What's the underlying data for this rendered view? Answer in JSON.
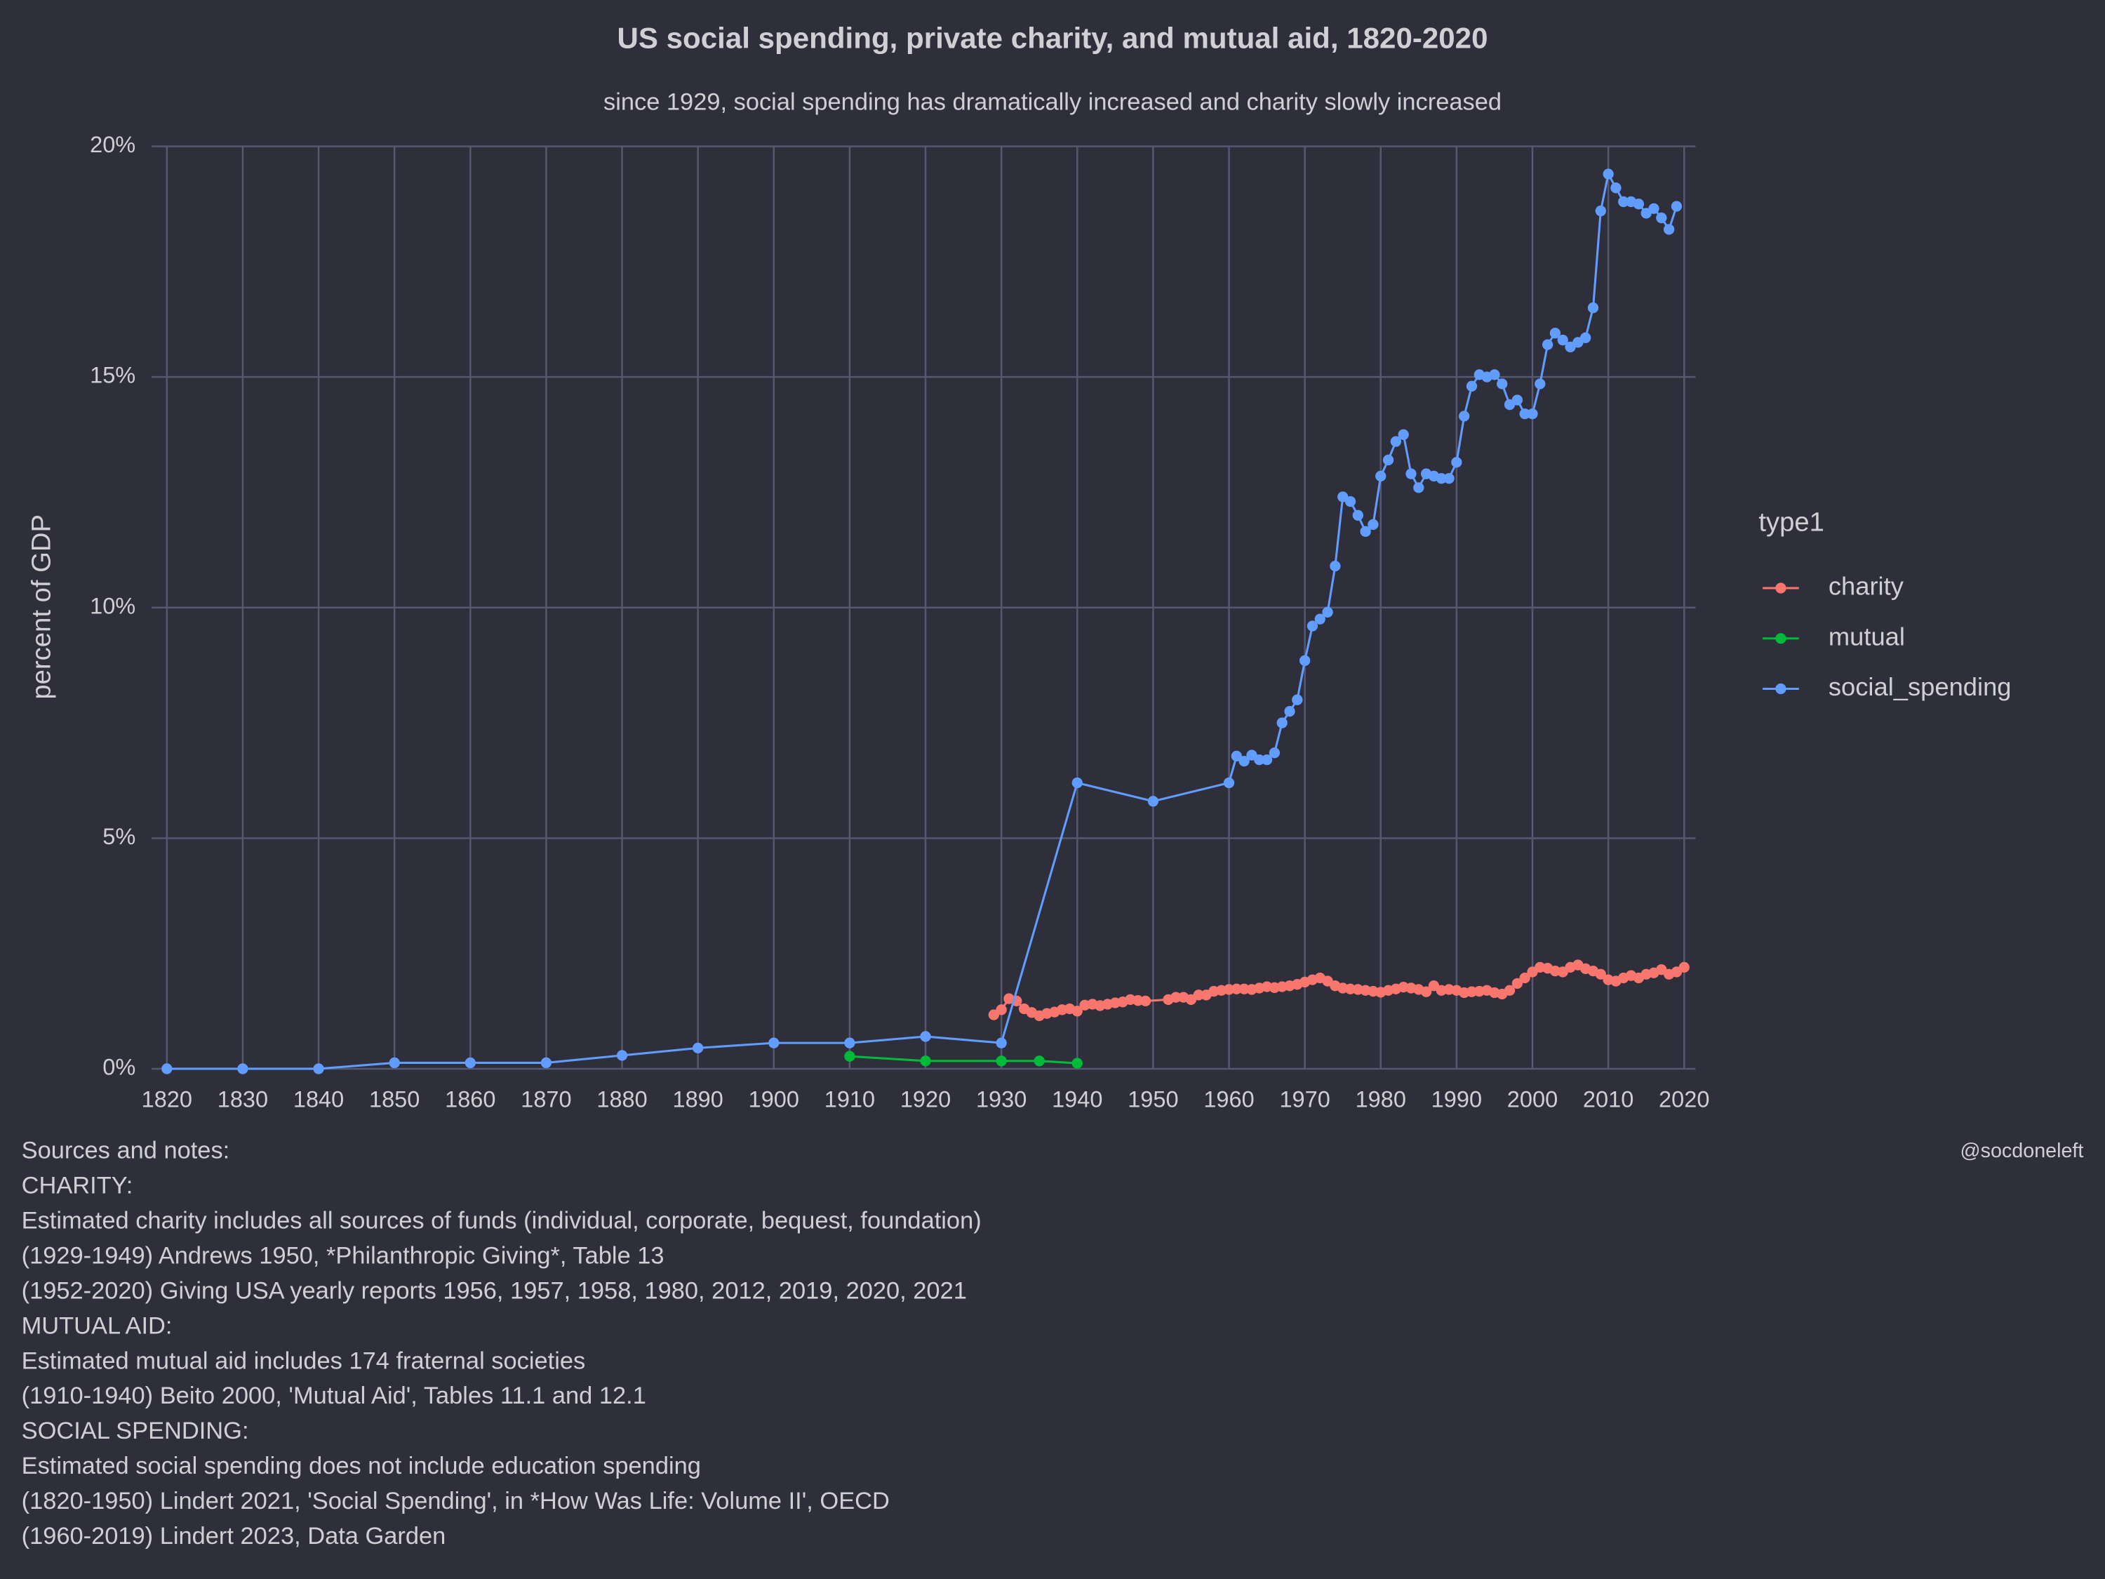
{
  "chart_data": {
    "type": "line",
    "title": "US social spending, private charity, and mutual aid, 1820-2020",
    "subtitle": "since 1929, social spending has dramatically increased and charity slowly increased",
    "y_label": "percent of GDP",
    "legend_title": "type1",
    "grid": true,
    "xlim": [
      1818,
      2021.5
    ],
    "ylim": [
      0,
      20
    ],
    "xticks": [
      1820,
      1830,
      1840,
      1850,
      1860,
      1870,
      1880,
      1890,
      1900,
      1910,
      1920,
      1930,
      1940,
      1950,
      1960,
      1970,
      1980,
      1990,
      2000,
      2010,
      2020
    ],
    "yticks": [
      {
        "value": 0,
        "label": "0%"
      },
      {
        "value": 5,
        "label": "5%"
      },
      {
        "value": 10,
        "label": "10%"
      },
      {
        "value": 15,
        "label": "15%"
      },
      {
        "value": 20,
        "label": "20%"
      }
    ],
    "series": [
      {
        "name": "charity",
        "color": "#f8766d",
        "x": [
          1929,
          1930,
          1931,
          1932,
          1933,
          1934,
          1935,
          1936,
          1937,
          1938,
          1939,
          1940,
          1941,
          1942,
          1943,
          1944,
          1945,
          1946,
          1947,
          1948,
          1949,
          1952,
          1953,
          1954,
          1955,
          1956,
          1957,
          1958,
          1959,
          1960,
          1961,
          1962,
          1963,
          1964,
          1965,
          1966,
          1967,
          1968,
          1969,
          1970,
          1971,
          1972,
          1973,
          1974,
          1975,
          1976,
          1977,
          1978,
          1979,
          1980,
          1981,
          1982,
          1983,
          1984,
          1985,
          1986,
          1987,
          1988,
          1989,
          1990,
          1991,
          1992,
          1993,
          1994,
          1995,
          1996,
          1997,
          1998,
          1999,
          2000,
          2001,
          2002,
          2003,
          2004,
          2005,
          2006,
          2007,
          2008,
          2009,
          2010,
          2011,
          2012,
          2013,
          2014,
          2015,
          2016,
          2017,
          2018,
          2019,
          2020
        ],
        "values": [
          1.17,
          1.28,
          1.52,
          1.47,
          1.3,
          1.22,
          1.15,
          1.2,
          1.23,
          1.28,
          1.3,
          1.25,
          1.38,
          1.4,
          1.37,
          1.4,
          1.43,
          1.45,
          1.5,
          1.48,
          1.47,
          1.5,
          1.55,
          1.55,
          1.5,
          1.6,
          1.6,
          1.68,
          1.7,
          1.72,
          1.73,
          1.73,
          1.72,
          1.75,
          1.78,
          1.76,
          1.78,
          1.8,
          1.83,
          1.88,
          1.93,
          1.97,
          1.9,
          1.8,
          1.75,
          1.73,
          1.72,
          1.7,
          1.68,
          1.66,
          1.7,
          1.73,
          1.77,
          1.75,
          1.72,
          1.67,
          1.8,
          1.7,
          1.72,
          1.7,
          1.65,
          1.67,
          1.68,
          1.7,
          1.65,
          1.62,
          1.7,
          1.85,
          1.97,
          2.1,
          2.2,
          2.18,
          2.12,
          2.1,
          2.2,
          2.25,
          2.17,
          2.12,
          2.05,
          1.93,
          1.9,
          1.97,
          2.02,
          1.97,
          2.05,
          2.08,
          2.15,
          2.05,
          2.1,
          2.2
        ]
      },
      {
        "name": "mutual",
        "color": "#00ba38",
        "x": [
          1910,
          1920,
          1930,
          1935,
          1940
        ],
        "values": [
          0.27,
          0.17,
          0.17,
          0.17,
          0.12
        ]
      },
      {
        "name": "social_spending",
        "color": "#619cff",
        "x": [
          1820,
          1830,
          1840,
          1850,
          1860,
          1870,
          1880,
          1890,
          1900,
          1910,
          1920,
          1930,
          1940,
          1950,
          1960,
          1961,
          1962,
          1963,
          1964,
          1965,
          1966,
          1967,
          1968,
          1969,
          1970,
          1971,
          1972,
          1973,
          1974,
          1975,
          1976,
          1977,
          1978,
          1979,
          1980,
          1981,
          1982,
          1983,
          1984,
          1985,
          1986,
          1987,
          1988,
          1989,
          1990,
          1991,
          1992,
          1993,
          1994,
          1995,
          1996,
          1997,
          1998,
          1999,
          2000,
          2001,
          2002,
          2003,
          2004,
          2005,
          2006,
          2007,
          2008,
          2009,
          2010,
          2011,
          2012,
          2013,
          2014,
          2015,
          2016,
          2017,
          2018,
          2019
        ],
        "values": [
          0,
          0,
          0,
          0.13,
          0.13,
          0.13,
          0.29,
          0.45,
          0.56,
          0.56,
          0.7,
          0.56,
          6.2,
          5.8,
          6.2,
          6.78,
          6.67,
          6.8,
          6.7,
          6.7,
          6.85,
          7.5,
          7.75,
          8.0,
          8.85,
          9.6,
          9.75,
          9.9,
          10.9,
          12.4,
          12.3,
          12.0,
          11.65,
          11.8,
          12.85,
          13.2,
          13.6,
          13.75,
          12.9,
          12.6,
          12.9,
          12.85,
          12.8,
          12.8,
          13.15,
          14.15,
          14.8,
          15.05,
          15.0,
          15.05,
          14.85,
          14.4,
          14.5,
          14.2,
          14.2,
          14.85,
          15.7,
          15.95,
          15.8,
          15.65,
          15.75,
          15.85,
          16.5,
          18.6,
          19.4,
          19.1,
          18.8,
          18.8,
          18.75,
          18.55,
          18.65,
          18.45,
          18.2,
          18.7
        ]
      }
    ],
    "credit": "@socdoneleft",
    "notes": [
      "Sources and notes:",
      "CHARITY:",
      "Estimated charity includes all sources of funds (individual, corporate, bequest, foundation)",
      "(1929-1949) Andrews 1950, *Philanthropic Giving*, Table 13",
      "(1952-2020) Giving USA yearly reports 1956, 1957, 1958, 1980, 2012, 2019, 2020, 2021",
      "MUTUAL AID:",
      "Estimated mutual aid includes 174 fraternal societies",
      "(1910-1940) Beito 2000, 'Mutual Aid', Tables 11.1 and 12.1",
      "SOCIAL SPENDING:",
      "Estimated social spending does not include education spending",
      "(1820-1950) Lindert 2021, 'Social Spending', in *How Was Life: Volume II', OECD",
      "(1960-2019) Lindert 2023, Data Garden"
    ]
  }
}
